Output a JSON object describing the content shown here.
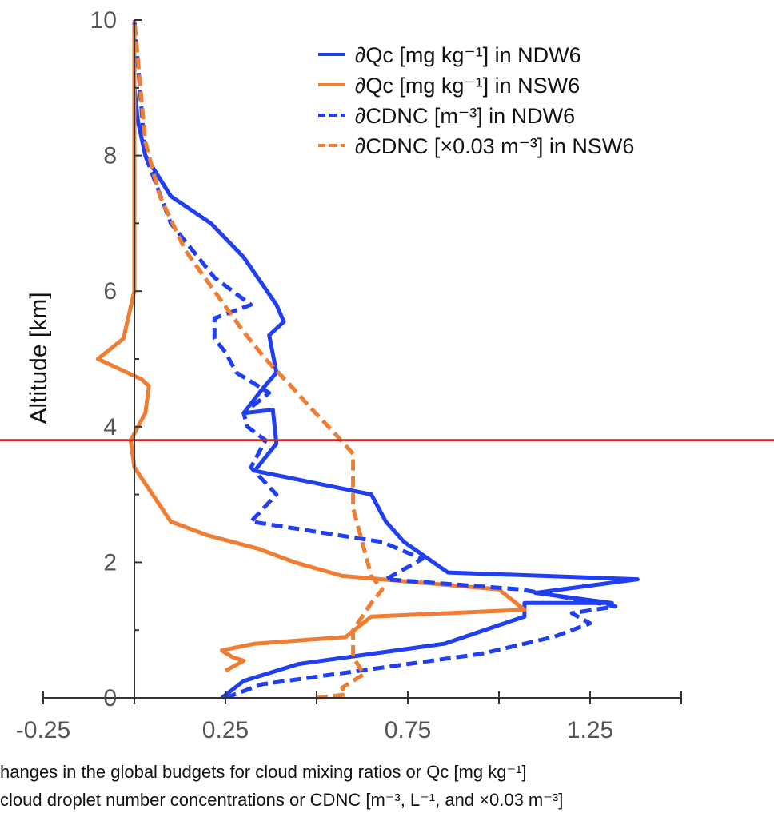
{
  "chart_data": {
    "type": "line",
    "title": "",
    "xlabel_lines": [
      "hanges in the global budgets for cloud mixing ratios or Qc [mg kg⁻¹]",
      "cloud droplet number concentrations or CDNC [m⁻³, L⁻¹, and ×0.03 m⁻³]"
    ],
    "ylabel": "Altitude [km]",
    "xlim": [
      -0.25,
      1.5
    ],
    "ylim": [
      0,
      10
    ],
    "x_tick_labels": [
      "-0.25",
      "0.25",
      "0.75",
      "1.25"
    ],
    "x_tick_values": [
      -0.25,
      0.25,
      0.75,
      1.25
    ],
    "y_tick_labels": [
      "0",
      "2",
      "4",
      "6",
      "8",
      "10"
    ],
    "y_tick_values": [
      0,
      2,
      4,
      6,
      8,
      10
    ],
    "reference_line": {
      "y": 3.8,
      "color": "#d62728"
    },
    "legend_position": "top-right",
    "series": [
      {
        "name": "∂Qc [mg kg⁻¹] in NDW6",
        "color": "#1f3ff0",
        "style": "solid",
        "x": [
          0.24,
          0.3,
          0.45,
          0.65,
          0.85,
          1.07,
          1.07,
          1.31,
          1.1,
          1.38,
          0.86,
          0.74,
          0.69,
          0.65,
          0.33,
          0.39,
          0.38,
          0.3,
          0.35,
          0.39,
          0.37,
          0.41,
          0.39,
          0.3,
          0.21,
          0.1,
          0.03,
          0.01,
          0.0,
          0.0
        ],
        "y": [
          0.0,
          0.25,
          0.5,
          0.65,
          0.8,
          1.2,
          1.4,
          1.4,
          1.55,
          1.75,
          1.85,
          2.3,
          2.6,
          3.0,
          3.35,
          3.75,
          4.25,
          4.2,
          4.55,
          4.8,
          5.35,
          5.55,
          5.8,
          6.5,
          7.0,
          7.4,
          8.0,
          8.5,
          9.0,
          10.0
        ]
      },
      {
        "name": "∂Qc [mg kg⁻¹] in NSW6",
        "color": "#ef7d32",
        "style": "solid",
        "x": [
          0.25,
          0.3,
          0.27,
          0.24,
          0.33,
          0.58,
          0.65,
          1.07,
          1.0,
          0.57,
          0.44,
          0.34,
          0.2,
          0.1,
          0.0,
          -0.01,
          0.03,
          0.04,
          0.02,
          -0.1,
          -0.03,
          0.0,
          0.0,
          0.0,
          0.0
        ],
        "y": [
          0.4,
          0.55,
          0.6,
          0.7,
          0.8,
          0.9,
          1.2,
          1.3,
          1.6,
          1.8,
          2.0,
          2.2,
          2.4,
          2.6,
          3.4,
          3.8,
          4.2,
          4.6,
          4.7,
          5.0,
          5.3,
          6.0,
          6.6,
          8.0,
          10.0
        ]
      },
      {
        "name": "∂CDNC [m⁻³] in NDW6",
        "color": "#1f3ff0",
        "style": "dashed",
        "x": [
          0.25,
          0.35,
          0.55,
          0.75,
          0.95,
          1.15,
          1.25,
          1.2,
          1.32,
          1.06,
          0.69,
          0.79,
          0.68,
          0.32,
          0.39,
          0.32,
          0.36,
          0.31,
          0.3,
          0.37,
          0.28,
          0.25,
          0.22,
          0.22,
          0.32,
          0.22,
          0.1,
          0.03,
          0.0
        ],
        "y": [
          0.0,
          0.2,
          0.35,
          0.5,
          0.65,
          0.9,
          1.1,
          1.25,
          1.35,
          1.6,
          1.75,
          2.05,
          2.3,
          2.6,
          3.0,
          3.4,
          3.8,
          4.0,
          4.2,
          4.5,
          4.8,
          5.1,
          5.3,
          5.6,
          5.8,
          6.2,
          7.0,
          8.0,
          10.0
        ]
      },
      {
        "name": "∂CDNC [×0.03 m⁻³] in NSW6",
        "color": "#ef7d32",
        "style": "dashed",
        "x": [
          0.5,
          0.58,
          0.57,
          0.63,
          0.6,
          0.6,
          0.65,
          0.68,
          0.65,
          0.62,
          0.6,
          0.6,
          0.6,
          0.6,
          0.55,
          0.48,
          0.43,
          0.36,
          0.3,
          0.22,
          0.14,
          0.07,
          0.03,
          0.0
        ],
        "y": [
          0.0,
          0.05,
          0.15,
          0.35,
          0.6,
          1.0,
          1.4,
          1.6,
          1.8,
          2.4,
          2.8,
          3.0,
          3.3,
          3.6,
          3.9,
          4.3,
          4.6,
          5.0,
          5.4,
          6.0,
          6.6,
          7.4,
          8.2,
          10.0
        ]
      }
    ]
  }
}
